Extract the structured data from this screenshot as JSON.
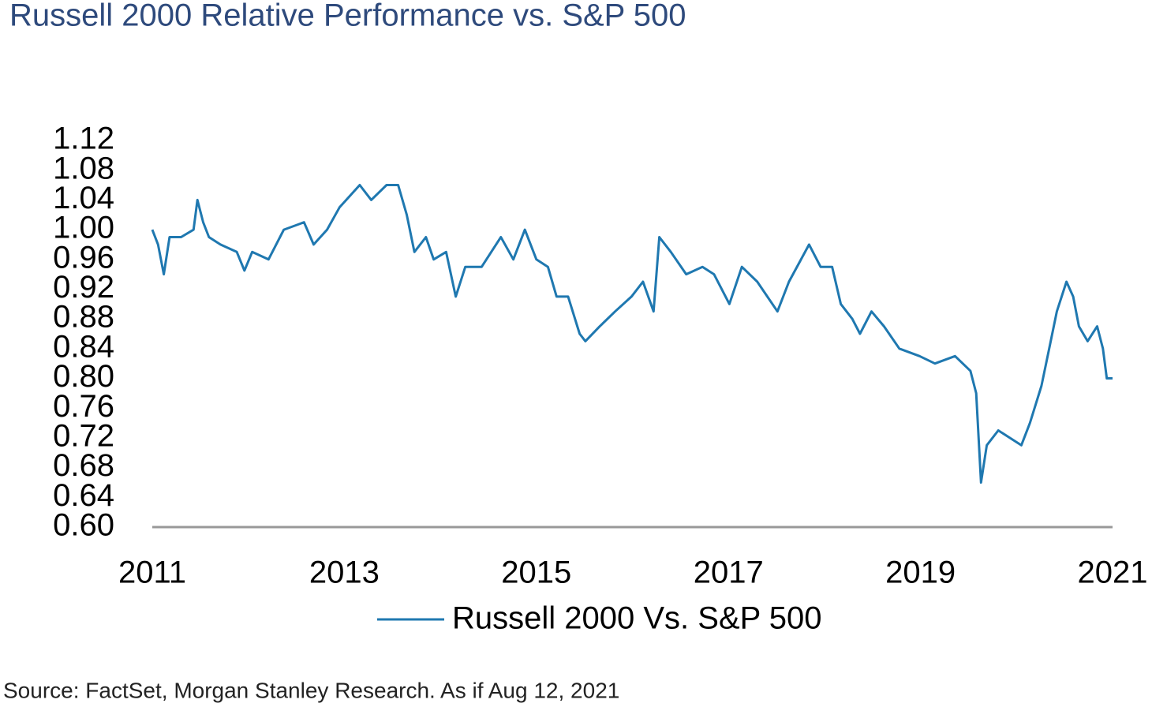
{
  "chart_data": {
    "type": "line",
    "title": "Russell 2000 Relative Performance vs. S&P 500",
    "source": "Source: FactSet, Morgan Stanley Research. As if Aug 12, 2021",
    "xlim": [
      2011,
      2021
    ],
    "xticks": [
      2011,
      2013,
      2015,
      2017,
      2019,
      2021
    ],
    "ylim": [
      0.6,
      1.12
    ],
    "yticks": [
      {
        "value": 0.6,
        "label": "0.60"
      },
      0.64,
      0.68,
      0.72,
      0.76,
      {
        "value": 0.8,
        "label": "0.80"
      },
      0.84,
      0.88,
      0.92,
      0.96,
      {
        "value": 1,
        "label": "1.00"
      },
      1.04,
      1.08,
      1.12
    ],
    "grid": false,
    "legend": "bottom",
    "x": [
      2011.0,
      2011.06,
      2011.12,
      2011.18,
      2011.3,
      2011.43,
      2011.47,
      2011.53,
      2011.59,
      2011.71,
      2011.88,
      2011.96,
      2012.04,
      2012.21,
      2012.37,
      2012.58,
      2012.68,
      2012.82,
      2012.95,
      2013.16,
      2013.28,
      2013.44,
      2013.56,
      2013.65,
      2013.73,
      2013.85,
      2013.93,
      2014.06,
      2014.16,
      2014.26,
      2014.43,
      2014.63,
      2014.76,
      2014.88,
      2015.0,
      2015.12,
      2015.21,
      2015.33,
      2015.45,
      2015.51,
      2015.66,
      2015.82,
      2015.99,
      2016.11,
      2016.22,
      2016.28,
      2016.4,
      2016.56,
      2016.73,
      2016.85,
      2017.01,
      2017.14,
      2017.3,
      2017.51,
      2017.63,
      2017.84,
      2017.96,
      2018.08,
      2018.17,
      2018.29,
      2018.37,
      2018.49,
      2018.62,
      2018.78,
      2018.99,
      2019.15,
      2019.36,
      2019.52,
      2019.58,
      2019.63,
      2019.69,
      2019.81,
      2019.93,
      2020.05,
      2020.14,
      2020.26,
      2020.34,
      2020.42,
      2020.52,
      2020.59,
      2020.65,
      2020.74,
      2020.84,
      2020.9,
      2020.94,
      2021.0
    ],
    "series": [
      {
        "name": "Russell 2000 Vs. S&P 500",
        "color": "#1f78b0",
        "values": [
          1.0,
          0.98,
          0.94,
          0.99,
          0.99,
          1.0,
          1.04,
          1.01,
          0.99,
          0.98,
          0.97,
          0.945,
          0.97,
          0.96,
          1.0,
          1.01,
          0.98,
          1.0,
          1.03,
          1.06,
          1.04,
          1.06,
          1.06,
          1.02,
          0.97,
          0.99,
          0.96,
          0.97,
          0.91,
          0.95,
          0.95,
          0.99,
          0.96,
          1.0,
          0.96,
          0.95,
          0.91,
          0.91,
          0.86,
          0.85,
          0.87,
          0.89,
          0.91,
          0.93,
          0.89,
          0.99,
          0.97,
          0.94,
          0.95,
          0.94,
          0.9,
          0.95,
          0.93,
          0.89,
          0.93,
          0.98,
          0.95,
          0.95,
          0.9,
          0.88,
          0.86,
          0.89,
          0.87,
          0.84,
          0.83,
          0.82,
          0.83,
          0.81,
          0.78,
          0.66,
          0.71,
          0.73,
          0.72,
          0.71,
          0.74,
          0.79,
          0.84,
          0.89,
          0.93,
          0.91,
          0.87,
          0.85,
          0.87,
          0.84,
          0.8,
          0.8
        ]
      }
    ]
  }
}
